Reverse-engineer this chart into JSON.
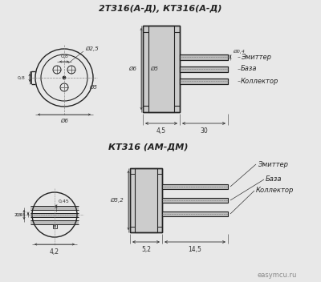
{
  "title1": "2T316(А-Д), КТ316(А-Д)",
  "title2": "КТ316 (АМ-ДМ)",
  "label_emitter": "Эмиттер",
  "label_base": "База",
  "label_collector": "Коллектор",
  "bg_color": "#e8e8e8",
  "line_color": "#222222",
  "dim_color": "#333333",
  "watermark": "easymcu.ru"
}
